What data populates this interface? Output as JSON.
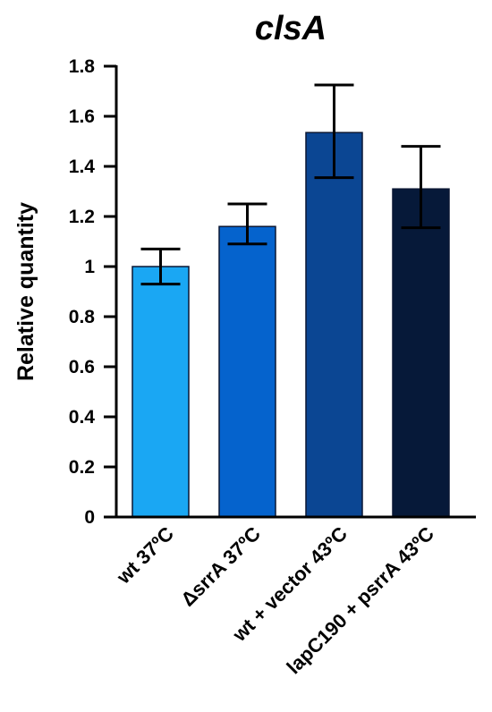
{
  "chart_data": {
    "type": "bar",
    "title": "clsA",
    "xlabel": "",
    "ylabel": "Relative quantity",
    "ylim": [
      0,
      1.8
    ],
    "yticks": [
      "0",
      "0.2",
      "0.4",
      "0.6",
      "0.8",
      "1",
      "1.2",
      "1.4",
      "1.6",
      "1.8"
    ],
    "categories": [
      {
        "label": "wt 37ºC",
        "value": 1.0,
        "err_low": 0.93,
        "err_high": 1.07,
        "color": "#1aa7f3"
      },
      {
        "label": "ΔsrrA 37ºC",
        "value": 1.16,
        "err_low": 1.09,
        "err_high": 1.25,
        "color": "#0563cd"
      },
      {
        "label": "wt + vector 43ºC",
        "value": 1.535,
        "err_low": 1.355,
        "err_high": 1.725,
        "color": "#0b4693"
      },
      {
        "label": "lapC190 + psrrA 43ºC",
        "value": 1.31,
        "err_low": 1.155,
        "err_high": 1.48,
        "color": "#061939"
      }
    ],
    "grid": false,
    "legend": "none"
  }
}
